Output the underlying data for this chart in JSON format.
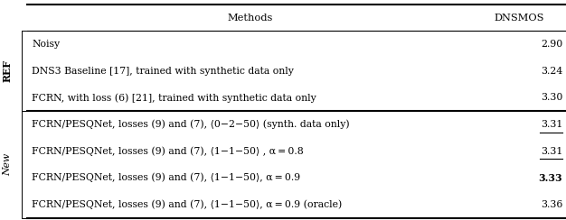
{
  "header": [
    "Methods",
    "DNSMOS"
  ],
  "ref_rows": [
    {
      "method": "Noisy",
      "value": "2.90",
      "bold": false,
      "underline": false
    },
    {
      "method": "DNS3 Baseline [17], trained with synthetic data only",
      "value": "3.24",
      "bold": false,
      "underline": false
    },
    {
      "method": "FCRN, with loss (6) [21], trained with synthetic data only",
      "value": "3.30",
      "bold": false,
      "underline": false
    }
  ],
  "new_rows": [
    {
      "method": "FCRN/PESQNet, losses (9) and (7), ⟨0−2−50⟩ (synth. data only)",
      "value": "3.31",
      "bold": false,
      "underline": true
    },
    {
      "method": "FCRN/PESQNet, losses (9) and (7), ⟨1−1−50⟩ , α = 0.8",
      "value": "3.31",
      "bold": false,
      "underline": true
    },
    {
      "method": "FCRN/PESQNet, losses (9) and (7), ⟨1−1−50⟩, α = 0.9",
      "value": "3.33",
      "bold": true,
      "underline": false
    },
    {
      "method": "FCRN/PESQNet, losses (9) and (7), ⟨1−1−50⟩, α = 0.9 (oracle)",
      "value": "3.36",
      "bold": false,
      "underline": false
    }
  ],
  "ref_label": "REF",
  "new_label": "New",
  "figsize": [
    6.26,
    2.44
  ],
  "dpi": 100,
  "fontsize": 7.8,
  "header_fontsize": 8.2
}
